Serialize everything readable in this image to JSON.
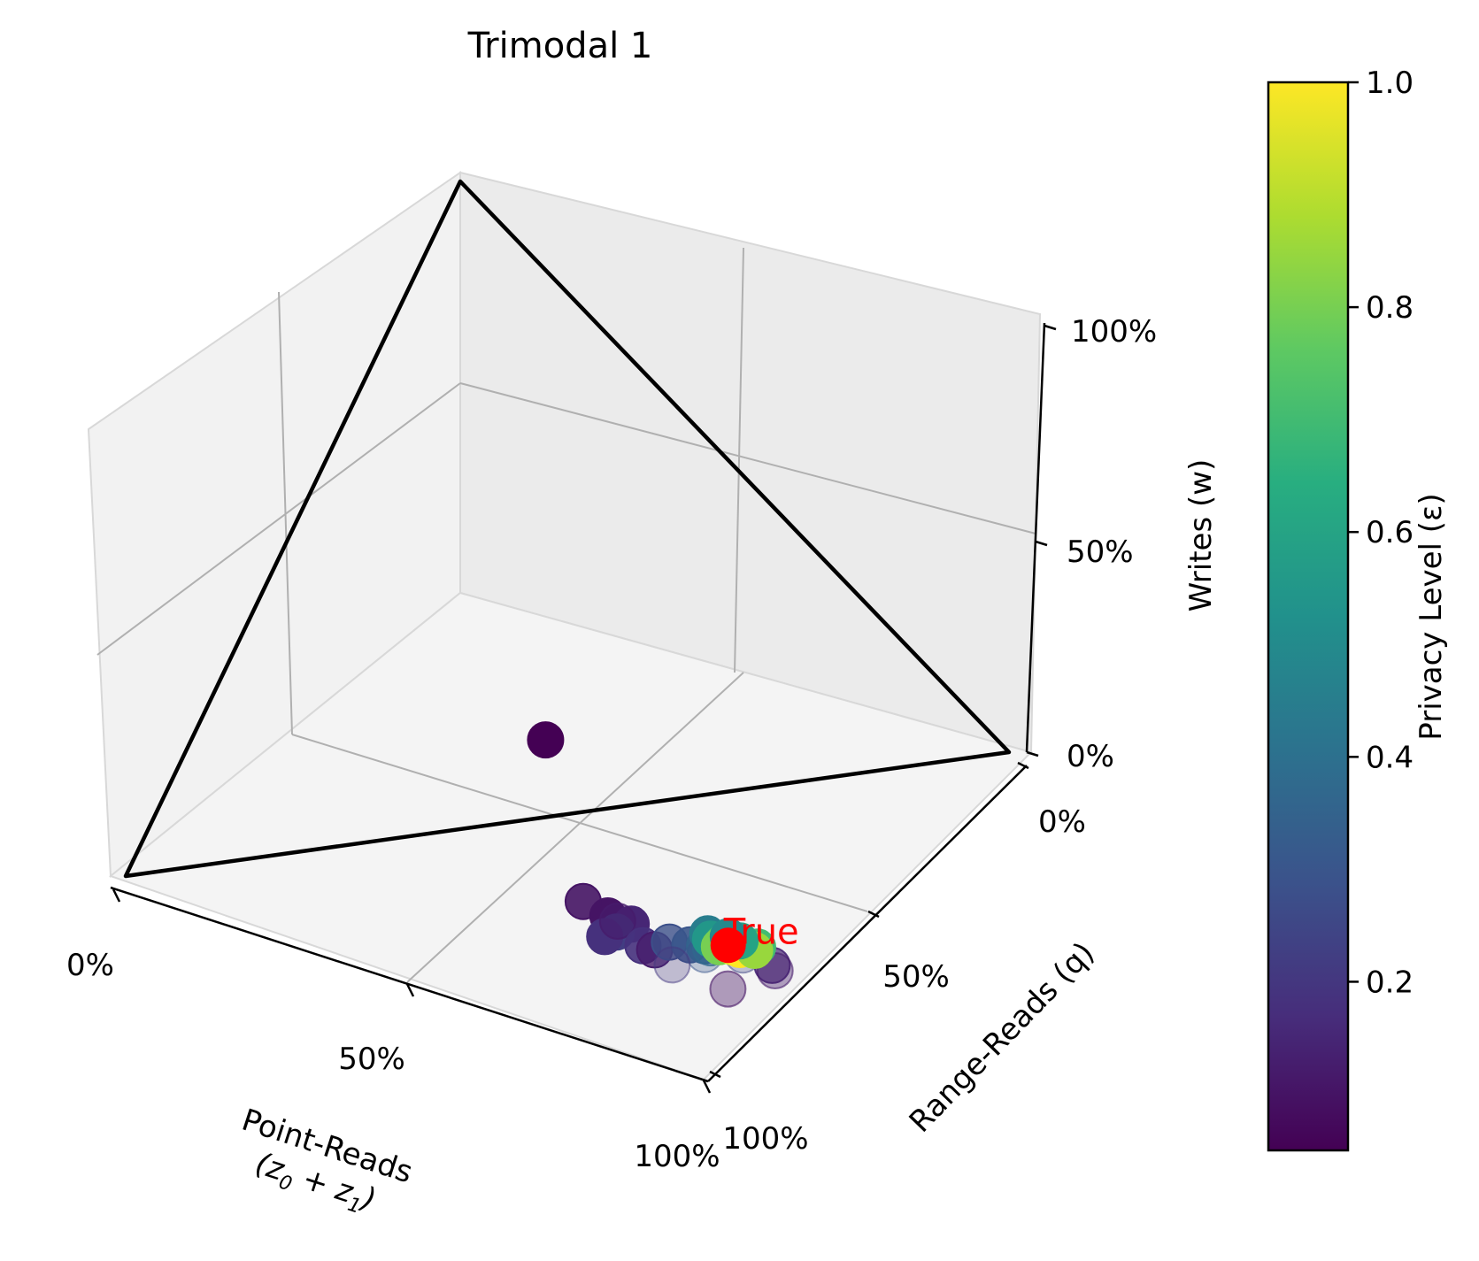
{
  "chart_data": {
    "type": "scatter",
    "projection": "3d",
    "title": "Trimodal 1",
    "axes": {
      "x": {
        "label_line1": "Point-Reads",
        "label_line2": "(z",
        "label_sub0": "0",
        "label_plus": " + z",
        "label_sub1": "1",
        "label_close": ")",
        "range": [
          0,
          1
        ],
        "ticks": [
          "0%",
          "50%",
          "100%"
        ]
      },
      "y": {
        "label": "Range-Reads (q)",
        "range": [
          0,
          1
        ],
        "ticks": [
          "0%",
          "50%",
          "100%"
        ]
      },
      "z": {
        "label": "Writes (w)",
        "range": [
          0,
          1
        ],
        "ticks": [
          "0%",
          "50%",
          "100%"
        ]
      }
    },
    "grid": true,
    "simplex_outline": true,
    "colorbar": {
      "label": "Privacy Level (ε)",
      "colormap": "viridis",
      "range": [
        0.05,
        1.0
      ],
      "ticks": [
        "0.2",
        "0.4",
        "0.6",
        "0.8",
        "1.0"
      ],
      "tick_values": [
        0.2,
        0.4,
        0.6,
        0.8,
        1.0
      ]
    },
    "true_point": {
      "label": "True",
      "x": 0.53,
      "y": 0.33,
      "z": 0.0,
      "color": "#ff0000"
    },
    "points": [
      {
        "x": 0.18,
        "y": 0.28,
        "z": 0.2,
        "eps": 0.05,
        "alpha": 1.0
      },
      {
        "x": 0.37,
        "y": 0.3,
        "z": 0.0,
        "eps": 0.1,
        "alpha": 1.0
      },
      {
        "x": 0.41,
        "y": 0.3,
        "z": 0.0,
        "eps": 0.15,
        "alpha": 1.0
      },
      {
        "x": 0.43,
        "y": 0.27,
        "z": 0.0,
        "eps": 0.22,
        "alpha": 1.0
      },
      {
        "x": 0.44,
        "y": 0.25,
        "z": 0.0,
        "eps": 0.18,
        "alpha": 1.0
      },
      {
        "x": 0.42,
        "y": 0.22,
        "z": 0.05,
        "eps": 0.1,
        "alpha": 0.9
      },
      {
        "x": 0.46,
        "y": 0.24,
        "z": 0.03,
        "eps": 0.12,
        "alpha": 0.6
      },
      {
        "x": 0.49,
        "y": 0.26,
        "z": 0.0,
        "eps": 0.18,
        "alpha": 0.9
      },
      {
        "x": 0.51,
        "y": 0.26,
        "z": 0.0,
        "eps": 0.12,
        "alpha": 0.8
      },
      {
        "x": 0.49,
        "y": 0.29,
        "z": 0.0,
        "eps": 0.28,
        "alpha": 0.8
      },
      {
        "x": 0.51,
        "y": 0.3,
        "z": 0.0,
        "eps": 0.3,
        "alpha": 0.9
      },
      {
        "x": 0.52,
        "y": 0.31,
        "z": 0.0,
        "eps": 0.35,
        "alpha": 0.9
      },
      {
        "x": 0.53,
        "y": 0.31,
        "z": 0.0,
        "eps": 0.4,
        "alpha": 0.5
      },
      {
        "x": 0.55,
        "y": 0.29,
        "z": 0.0,
        "eps": 0.3,
        "alpha": 0.3
      },
      {
        "x": 0.57,
        "y": 0.32,
        "z": 0.0,
        "eps": 0.25,
        "alpha": 0.3
      },
      {
        "x": 0.57,
        "y": 0.24,
        "z": 0.0,
        "eps": 0.2,
        "alpha": 0.3
      },
      {
        "x": 0.62,
        "y": 0.32,
        "z": 0.0,
        "eps": 0.15,
        "alpha": 0.7
      },
      {
        "x": 0.64,
        "y": 0.31,
        "z": 0.0,
        "eps": 0.12,
        "alpha": 0.4
      },
      {
        "x": 0.68,
        "y": 0.23,
        "z": 0.0,
        "eps": 0.1,
        "alpha": 0.4
      },
      {
        "x": 0.48,
        "y": 0.34,
        "z": 0.0,
        "eps": 0.45,
        "alpha": 1.0
      },
      {
        "x": 0.5,
        "y": 0.33,
        "z": 0.0,
        "eps": 0.55,
        "alpha": 1.0
      },
      {
        "x": 0.51,
        "y": 0.34,
        "z": 0.0,
        "eps": 0.65,
        "alpha": 1.0
      },
      {
        "x": 0.52,
        "y": 0.33,
        "z": 0.0,
        "eps": 0.72,
        "alpha": 1.0
      },
      {
        "x": 0.53,
        "y": 0.32,
        "z": 0.0,
        "eps": 0.8,
        "alpha": 1.0
      },
      {
        "x": 0.53,
        "y": 0.34,
        "z": 0.0,
        "eps": 0.88,
        "alpha": 1.0
      },
      {
        "x": 0.54,
        "y": 0.33,
        "z": 0.0,
        "eps": 0.95,
        "alpha": 1.0
      },
      {
        "x": 0.55,
        "y": 0.33,
        "z": 0.0,
        "eps": 1.0,
        "alpha": 1.0
      },
      {
        "x": 0.55,
        "y": 0.35,
        "z": 0.0,
        "eps": 0.7,
        "alpha": 1.0
      },
      {
        "x": 0.56,
        "y": 0.34,
        "z": 0.0,
        "eps": 0.85,
        "alpha": 1.0
      },
      {
        "x": 0.52,
        "y": 0.35,
        "z": 0.0,
        "eps": 0.6,
        "alpha": 1.0
      },
      {
        "x": 0.5,
        "y": 0.35,
        "z": 0.0,
        "eps": 0.5,
        "alpha": 1.0
      }
    ]
  }
}
